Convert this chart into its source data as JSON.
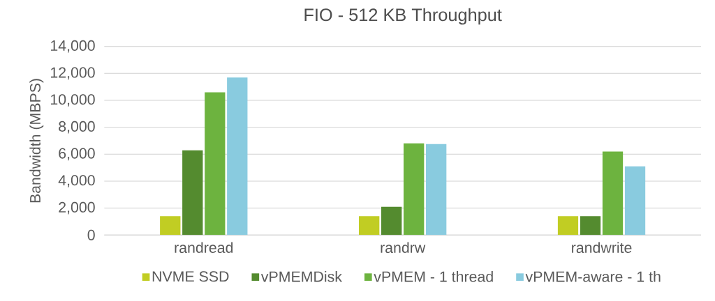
{
  "chart_data": {
    "type": "bar",
    "title": "FIO - 512 KB Throughput",
    "ylabel": "Bandwidth (MBPS)",
    "categories": [
      "randread",
      "randrw",
      "randwrite"
    ],
    "series": [
      {
        "name": "NVME SSD",
        "color": "#c1cd23",
        "values": [
          1400,
          1400,
          1400
        ]
      },
      {
        "name": "vPMEMDisk",
        "color": "#548b2f",
        "values": [
          6300,
          2100,
          1400
        ]
      },
      {
        "name": "vPMEM - 1 thread",
        "color": "#6db33f",
        "values": [
          10600,
          6800,
          6200
        ]
      },
      {
        "name": "vPMEM-aware - 1 th",
        "color": "#89cbdf",
        "values": [
          11700,
          6750,
          5100
        ]
      }
    ],
    "ylim": [
      0,
      14000
    ],
    "yticks": [
      {
        "value": 0,
        "label": "0"
      },
      {
        "value": 2000,
        "label": "2,000"
      },
      {
        "value": 4000,
        "label": "4,000"
      },
      {
        "value": 6000,
        "label": "6,000"
      },
      {
        "value": 8000,
        "label": "8,000"
      },
      {
        "value": 10000,
        "label": "10,000"
      },
      {
        "value": 12000,
        "label": "12,000"
      },
      {
        "value": 14000,
        "label": "14,000"
      }
    ],
    "grid": "y",
    "legend": "bottom"
  }
}
